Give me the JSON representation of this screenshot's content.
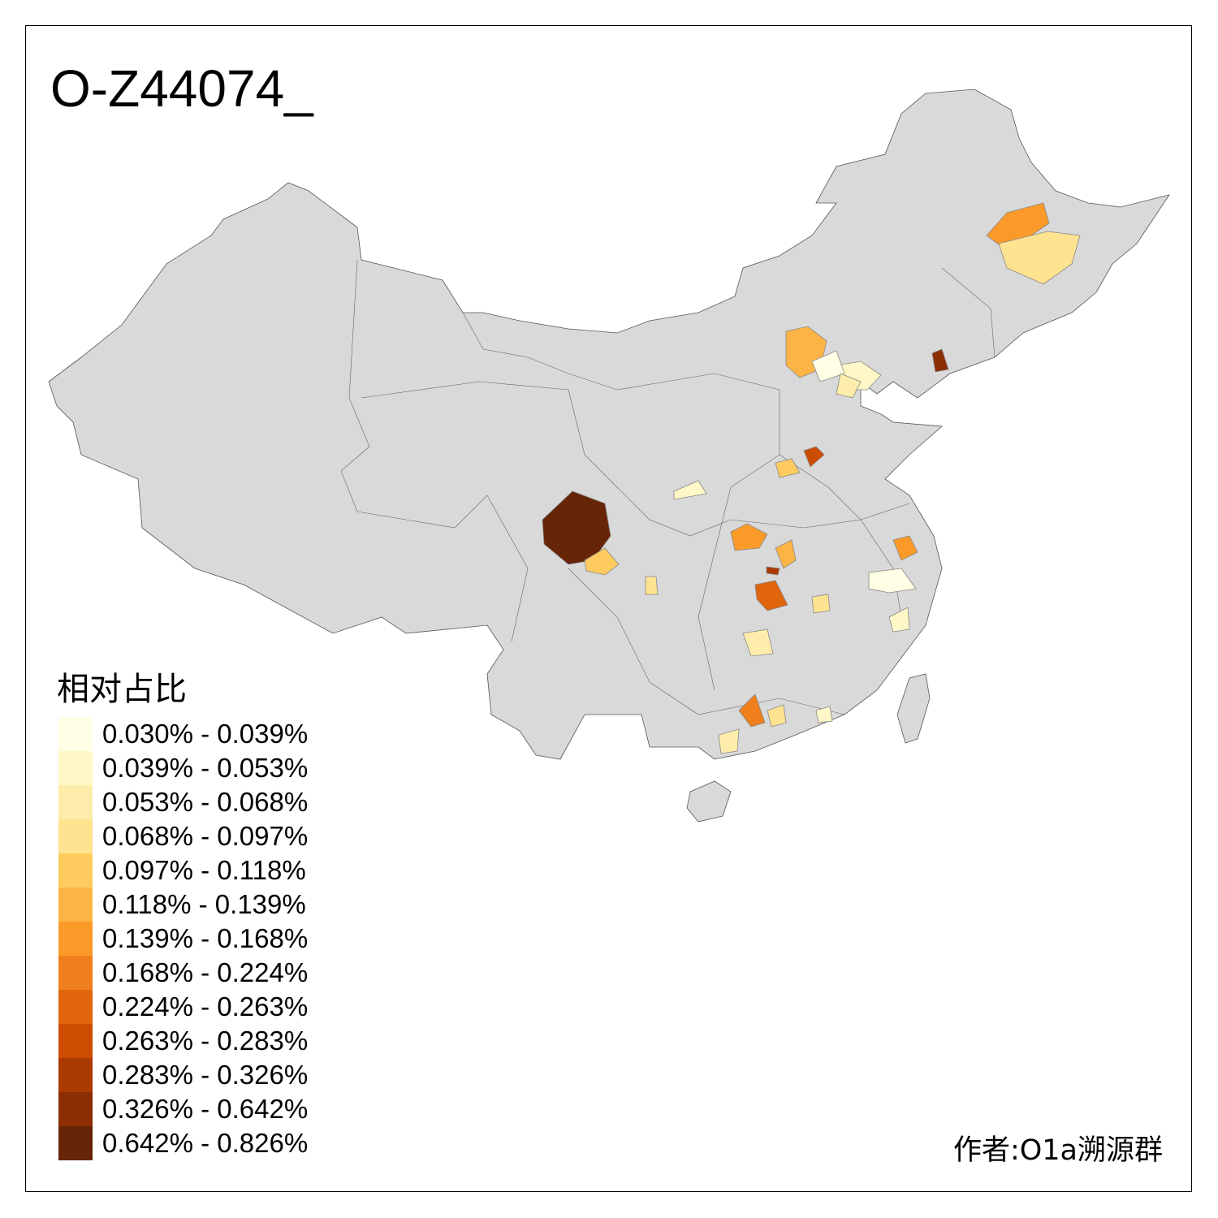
{
  "title": "O-Z44074_",
  "legend": {
    "title": "相对占比",
    "classes": [
      {
        "label": "0.030% - 0.039%",
        "color": "#FFFFE5"
      },
      {
        "label": "0.039% - 0.053%",
        "color": "#FFF8C6"
      },
      {
        "label": "0.053% - 0.068%",
        "color": "#FEEDAA"
      },
      {
        "label": "0.068% - 0.097%",
        "color": "#FEE391"
      },
      {
        "label": "0.097% - 0.118%",
        "color": "#FECC5E"
      },
      {
        "label": "0.118% - 0.139%",
        "color": "#FDB446"
      },
      {
        "label": "0.139% - 0.168%",
        "color": "#FB9A29"
      },
      {
        "label": "0.168% - 0.224%",
        "color": "#F07F1D"
      },
      {
        "label": "0.224% - 0.263%",
        "color": "#E1640E"
      },
      {
        "label": "0.263% - 0.283%",
        "color": "#CC4C02"
      },
      {
        "label": "0.283% - 0.326%",
        "color": "#AC3A03"
      },
      {
        "label": "0.326% - 0.642%",
        "color": "#8C2D04"
      },
      {
        "label": "0.642% - 0.826%",
        "color": "#662506"
      }
    ]
  },
  "map": {
    "base_color": "#D9D9D9",
    "border_color": "#555555"
  },
  "highlighted_region_classes": [
    12,
    4,
    3,
    6,
    5,
    4,
    9,
    8,
    10,
    6,
    3,
    1,
    0,
    2,
    1,
    5,
    11,
    2,
    7,
    2,
    3,
    6,
    0,
    1,
    3,
    1
  ],
  "author": "作者:O1a溯源群"
}
